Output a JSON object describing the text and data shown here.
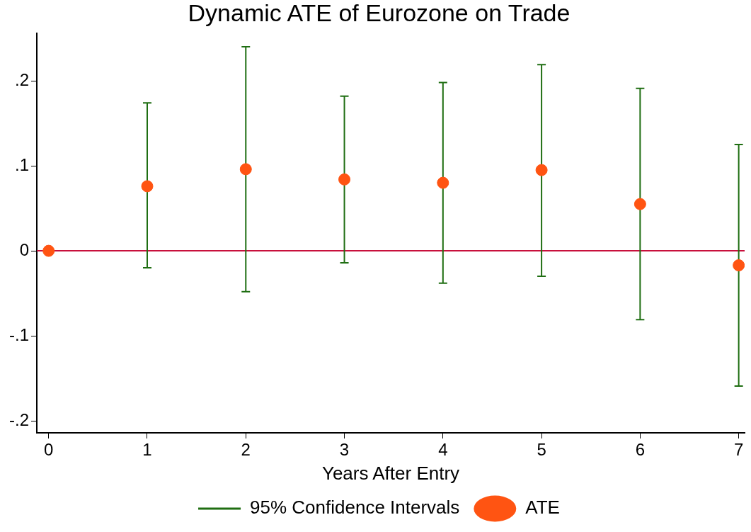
{
  "chart_data": {
    "type": "scatter",
    "title": "Dynamic ATE of Eurozone on Trade",
    "xlabel": "Years After Entry",
    "x": [
      0,
      1,
      2,
      3,
      4,
      5,
      6,
      7
    ],
    "series": [
      {
        "name": "ATE",
        "color": "#ff5412",
        "values": [
          0,
          0.076,
          0.096,
          0.084,
          0.08,
          0.095,
          0.055,
          -0.017
        ],
        "errors": [
          null,
          [
            -0.02,
            0.174
          ],
          [
            -0.048,
            0.24
          ],
          [
            -0.014,
            0.182
          ],
          [
            -0.038,
            0.198
          ],
          [
            -0.03,
            0.219
          ],
          [
            -0.081,
            0.191
          ],
          [
            -0.159,
            0.125
          ]
        ]
      }
    ],
    "annotations": [
      "95% Confidence Intervals"
    ],
    "xlim": [
      -0.12,
      7.06
    ],
    "xticks": [
      0,
      1,
      2,
      3,
      4,
      5,
      6,
      7
    ],
    "ylim": [
      -0.214,
      0.256
    ],
    "yticks": [
      {
        "value": -0.2,
        "label": "-.2"
      },
      {
        "value": -0.1,
        "label": "-.1"
      },
      0,
      {
        "value": 0.1,
        "label": ".1"
      },
      {
        "value": 0.2,
        "label": ".2"
      }
    ],
    "ref_lines": [
      {
        "axis": "y",
        "value": 0,
        "color": "#c8103c"
      }
    ],
    "grid": false,
    "legend": "bottom",
    "marker": "circle"
  }
}
